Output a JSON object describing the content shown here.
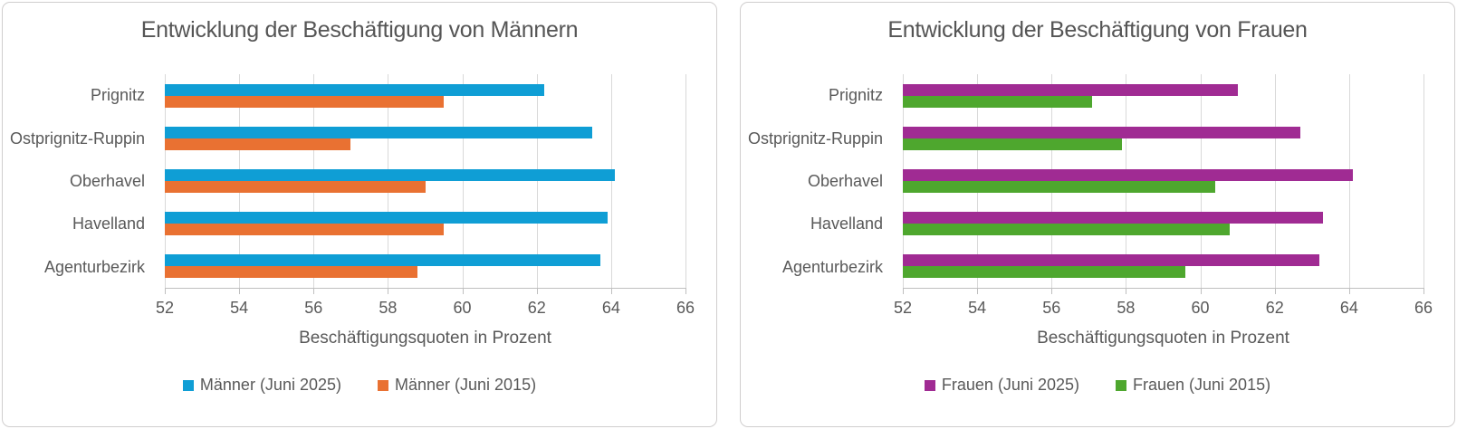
{
  "page": {
    "background": "#ffffff",
    "panel_border_color": "#d0cece",
    "text_color": "#595959",
    "gridline_color": "#d9d9d9",
    "axis_line_color": "#bfbfbf"
  },
  "chart_data": [
    {
      "type": "bar",
      "orientation": "horizontal",
      "title": "Entwicklung der Beschäftigung von Männern",
      "categories": [
        "Prignitz",
        "Ostprignitz-Ruppin",
        "Oberhavel",
        "Havelland",
        "Agenturbezirk"
      ],
      "series": [
        {
          "name": "Männer (Juni 2025)",
          "color": "#0F9ED5",
          "values": [
            62.2,
            63.5,
            64.1,
            63.9,
            63.7
          ]
        },
        {
          "name": "Männer (Juni 2015)",
          "color": "#E97132",
          "values": [
            59.5,
            57.0,
            59.0,
            59.5,
            58.8
          ]
        }
      ],
      "xlabel": "Beschäftigungsquoten in Prozent",
      "xlim": [
        52,
        66
      ],
      "xticks": [
        52,
        54,
        56,
        58,
        60,
        62,
        64,
        66
      ],
      "grid": true,
      "legend_position": "bottom"
    },
    {
      "type": "bar",
      "orientation": "horizontal",
      "title": "Entwicklung der Beschäftigung von Frauen",
      "categories": [
        "Prignitz",
        "Ostprignitz-Ruppin",
        "Oberhavel",
        "Havelland",
        "Agenturbezirk"
      ],
      "series": [
        {
          "name": "Frauen (Juni 2025)",
          "color": "#A02B93",
          "values": [
            61.0,
            62.7,
            64.1,
            63.3,
            63.2
          ]
        },
        {
          "name": "Frauen (Juni 2015)",
          "color": "#4EA72E",
          "values": [
            57.1,
            57.9,
            60.4,
            60.8,
            59.6
          ]
        }
      ],
      "xlabel": "Beschäftigungsquoten in Prozent",
      "xlim": [
        52,
        66
      ],
      "xticks": [
        52,
        54,
        56,
        58,
        60,
        62,
        64,
        66
      ],
      "grid": true,
      "legend_position": "bottom"
    }
  ]
}
